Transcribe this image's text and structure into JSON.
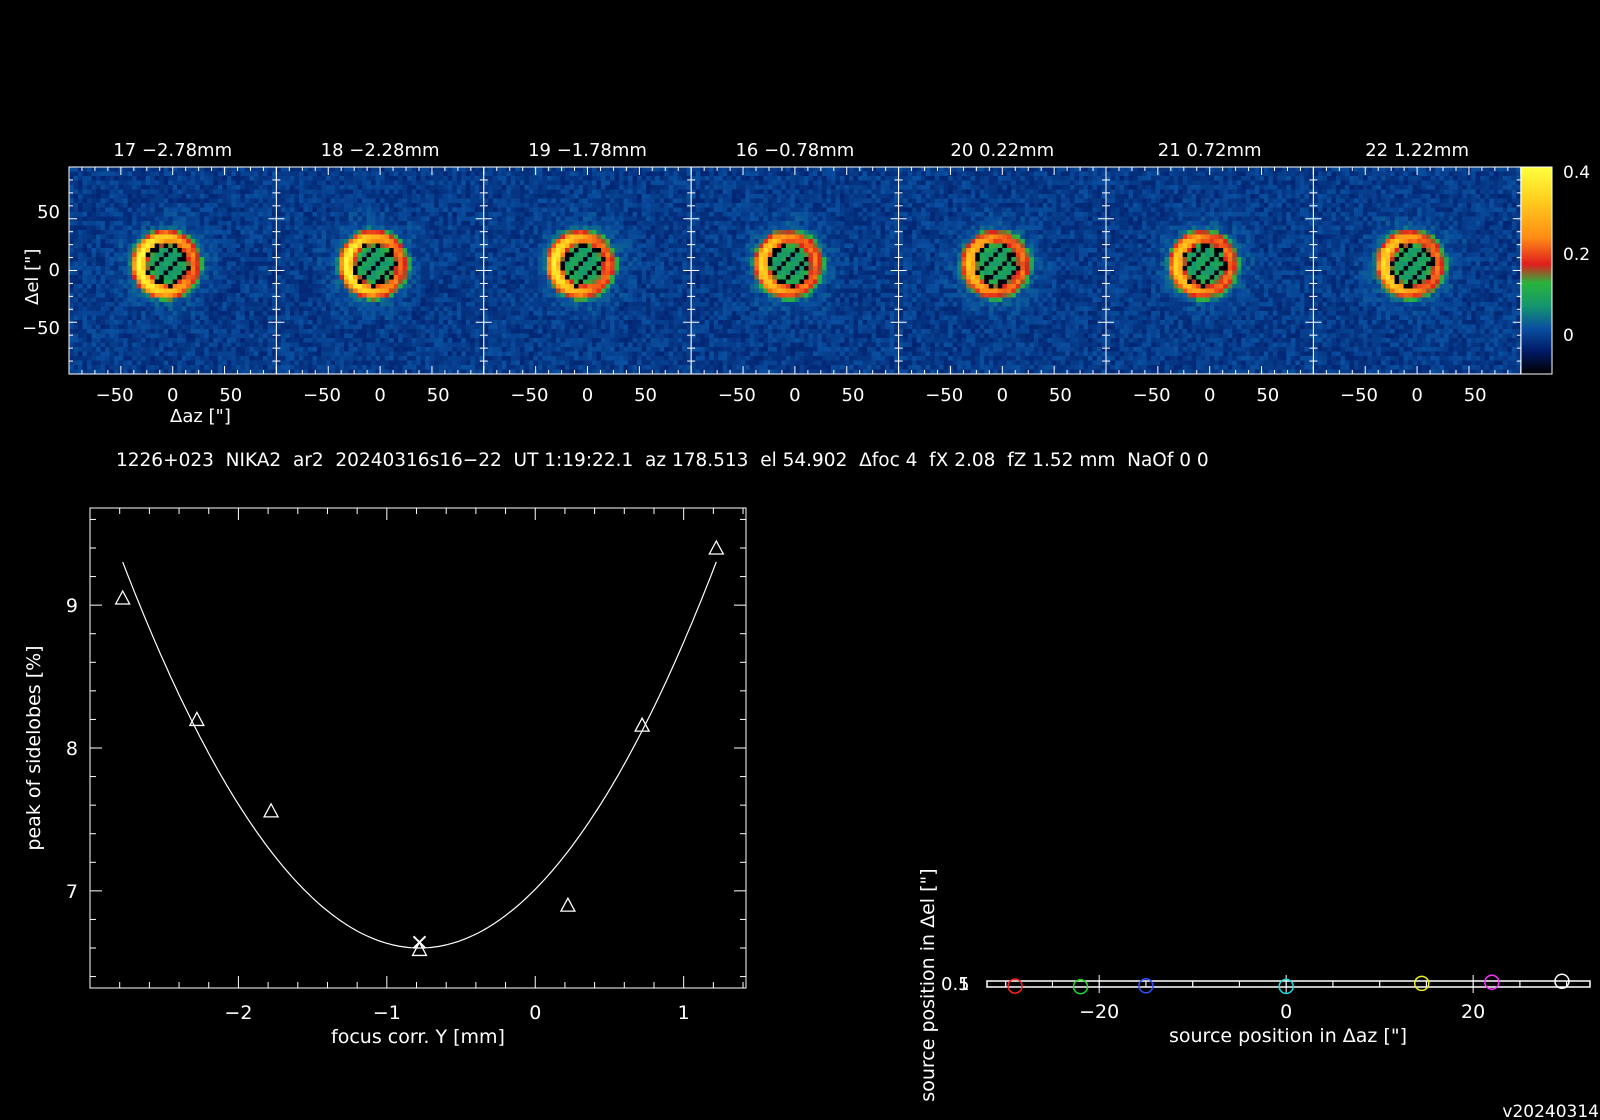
{
  "colors": {
    "background": "#000000",
    "foreground": "#ffffff"
  },
  "maps_row": {
    "panels": [
      {
        "scan": "17",
        "focus": "−2.78mm",
        "title": "17  −2.78mm",
        "focus_mm": -2.78
      },
      {
        "scan": "18",
        "focus": "−2.28mm",
        "title": "18  −2.28mm",
        "focus_mm": -2.28
      },
      {
        "scan": "19",
        "focus": "−1.78mm",
        "title": "19  −1.78mm",
        "focus_mm": -1.78
      },
      {
        "scan": "16",
        "focus": "−0.78mm",
        "title": "16  −0.78mm",
        "focus_mm": -0.78
      },
      {
        "scan": "20",
        "focus": "0.22mm",
        "title": "20  0.22mm",
        "focus_mm": 0.22
      },
      {
        "scan": "21",
        "focus": "0.72mm",
        "title": "21  0.72mm",
        "focus_mm": 0.72
      },
      {
        "scan": "22",
        "focus": "1.22mm",
        "title": "22  1.22mm",
        "focus_mm": 1.22
      }
    ],
    "xlabel": "Δaz [\"]",
    "ylabel": "Δel [\"]",
    "xticks": [
      "−50",
      "0",
      "50"
    ],
    "yticks": [
      "50",
      "0",
      "−50"
    ],
    "colorbar": {
      "ticks": [
        "0.4",
        "0.2",
        "0"
      ],
      "range": [
        -0.05,
        0.4
      ],
      "colors": [
        "#000000",
        "#001a66",
        "#0a4fa0",
        "#14966e",
        "#2ab43c",
        "#e01e1e",
        "#ff8c14",
        "#ffd21e",
        "#ffff40"
      ]
    }
  },
  "info_line": "1226+023  NIKA2  ar2  20240316s16−22  UT 1:19:22.1  az 178.513  el 54.902  Δfoc 4  fX 2.08  fZ 1.52 mm  NaOf 0 0",
  "chart_data": [
    {
      "type": "scatter",
      "x": [
        -2.78,
        -2.28,
        -1.78,
        -0.78,
        0.22,
        0.72,
        1.22
      ],
      "y": [
        9.05,
        8.2,
        7.56,
        6.59,
        6.9,
        8.16,
        9.4
      ],
      "fit": {
        "type": "parabola",
        "vertex_x": -0.78,
        "vertex_y": 6.6,
        "curvature": 0.6757
      },
      "best_focus_marker": {
        "x": -0.78,
        "y": 6.64
      },
      "xlabel": "focus corr. Y [mm]",
      "ylabel": "peak of sidelobes [%]",
      "xticks": [
        -2,
        -1,
        0,
        1
      ],
      "yticks": [
        7,
        8,
        9
      ],
      "xtick_labels": [
        "−2",
        "−1",
        "0",
        "1"
      ],
      "yticks_labels": [
        "7",
        "8",
        "9"
      ],
      "xlim": [
        -3.0,
        1.42
      ],
      "ylim": [
        6.32,
        9.68
      ]
    },
    {
      "type": "scatter",
      "x": [
        -29,
        -22,
        -15,
        0,
        14.5,
        22,
        29.5
      ],
      "y": [
        0.465,
        0.455,
        0.47,
        0.46,
        0.51,
        0.53,
        0.545
      ],
      "colors": [
        "#ff2020",
        "#20dd20",
        "#3050ff",
        "#20dddd",
        "#f0f020",
        "#ff30ff",
        "#ffffff"
      ],
      "xlabel": "source position in Δaz [\"]",
      "ylabel": "source position in Δel [\"]",
      "xticks": [
        -20,
        0,
        20
      ],
      "xtick_labels": [
        "−20",
        "0",
        "20"
      ],
      "ytick_labels": [
        "0.5",
        "1"
      ],
      "xlim": [
        -32,
        32.5
      ]
    }
  ],
  "version": "v20240314"
}
